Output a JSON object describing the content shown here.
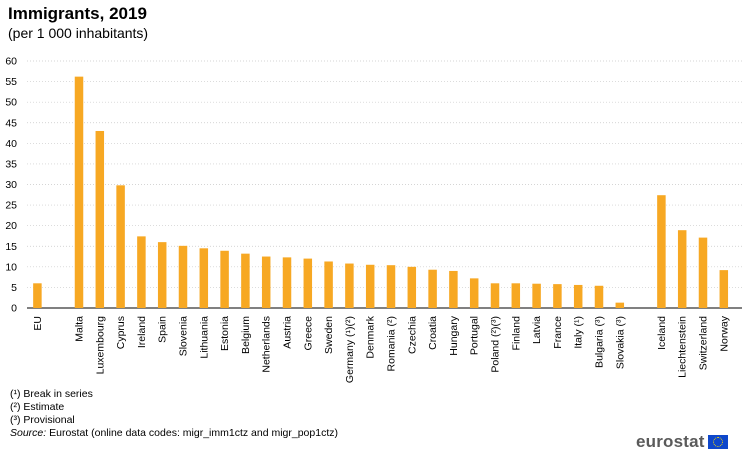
{
  "chart_data": {
    "type": "bar",
    "title": "Immigrants, 2019",
    "subtitle": "(per 1 000 inhabitants)",
    "ylim": [
      0,
      60
    ],
    "yticks": [
      0,
      5,
      10,
      15,
      20,
      25,
      30,
      35,
      40,
      45,
      50,
      55,
      60
    ],
    "grid": true,
    "bar_color": "#f7a823",
    "groups": [
      {
        "categories": [
          "EU"
        ],
        "values": [
          6.0
        ]
      },
      {
        "categories": [
          "Malta",
          "Luxembourg",
          "Cyprus",
          "Ireland",
          "Spain",
          "Slovenia",
          "Lithuania",
          "Estonia",
          "Belgium",
          "Netherlands",
          "Austria",
          "Greece",
          "Sweden",
          "Germany (¹)(²)",
          "Denmark",
          "Romania (²)",
          "Czechia",
          "Croatia",
          "Hungary",
          "Portugal",
          "Poland (²)(³)",
          "Finland",
          "Latvia",
          "France",
          "Italy (¹)",
          "Bulgaria (³)",
          "Slovakia (³)"
        ],
        "values": [
          56.2,
          43.0,
          29.8,
          17.4,
          16.0,
          15.1,
          14.5,
          13.9,
          13.2,
          12.5,
          12.3,
          12.0,
          11.3,
          10.8,
          10.5,
          10.4,
          10.0,
          9.3,
          9.0,
          7.2,
          6.0,
          6.0,
          5.9,
          5.8,
          5.6,
          5.4,
          1.3
        ]
      },
      {
        "categories": [
          "Iceland",
          "Liechtenstein",
          "Switzerland",
          "Norway"
        ],
        "values": [
          27.4,
          18.9,
          17.1,
          9.2
        ]
      }
    ]
  },
  "notes": [
    "(¹) Break in series",
    "(²) Estimate",
    "(³) Provisional"
  ],
  "source": {
    "label": "Source:",
    "text": "Eurostat (online data codes: migr_imm1ctz and migr_pop1ctz)"
  },
  "logo": {
    "text": "eurostat"
  }
}
